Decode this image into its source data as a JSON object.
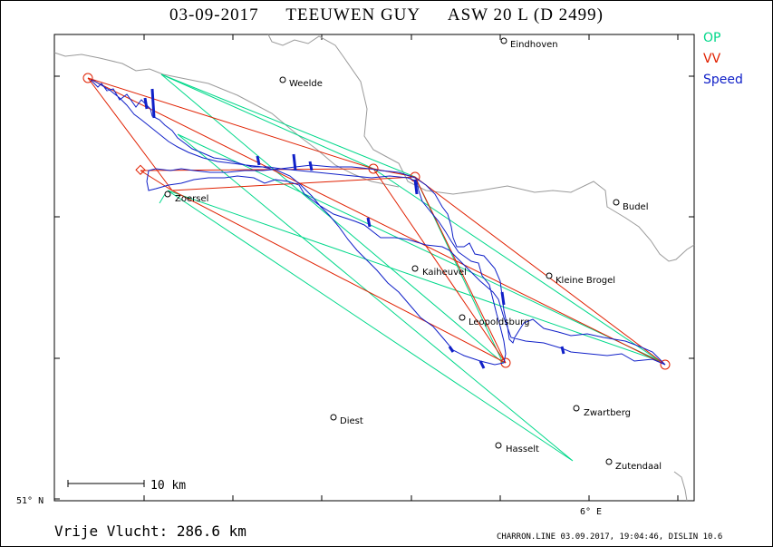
{
  "title": {
    "date": "03-09-2017",
    "pilot": "TEEUWEN GUY",
    "glider": "ASW 20 L (D 2499)"
  },
  "legend": {
    "op": {
      "label": "OP",
      "color": "#00d88a"
    },
    "vv": {
      "label": "VV",
      "color": "#e02000"
    },
    "speed": {
      "label": "Speed",
      "color": "#1020c8"
    }
  },
  "axes": {
    "lat_label": "51° N",
    "lon_label": "6° E"
  },
  "scale_bar": {
    "label": "10 km"
  },
  "places": [
    {
      "name": "Eindhoven"
    },
    {
      "name": "Weelde"
    },
    {
      "name": "Zoersel"
    },
    {
      "name": "Budel"
    },
    {
      "name": "Kaiheuvel"
    },
    {
      "name": "Kleine Brogel"
    },
    {
      "name": "Leopoldsburg"
    },
    {
      "name": "Zwartberg"
    },
    {
      "name": "Diest"
    },
    {
      "name": "Hasselt"
    },
    {
      "name": "Zutendaal"
    }
  ],
  "footer": {
    "distance": "Vrije Vlucht:  286.6 km",
    "credits": "CHARRON.LINE 03.09.2017, 19:04:46, DISLIN 10.6"
  }
}
